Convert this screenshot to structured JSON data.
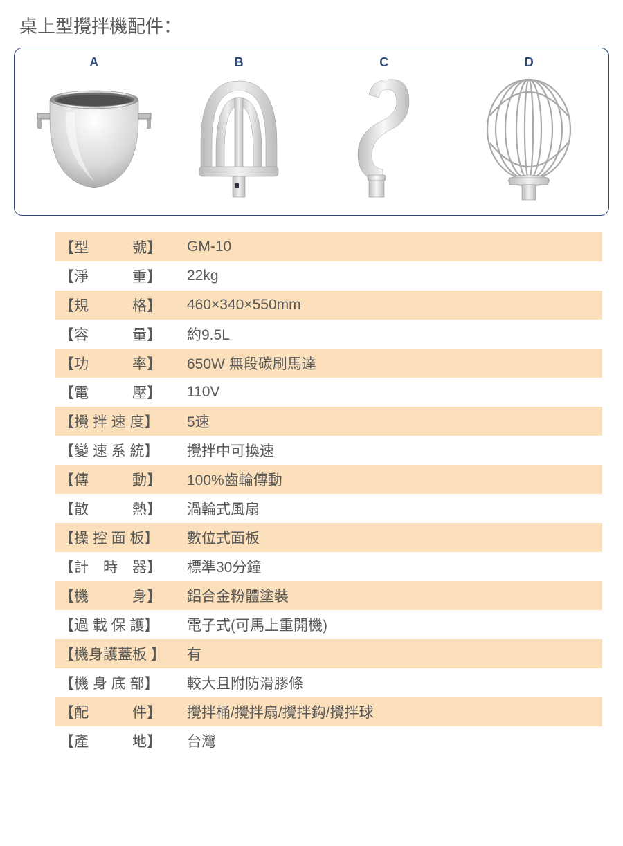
{
  "title": "桌上型攪拌機配件：",
  "accessories": {
    "labels": [
      "A",
      "B",
      "C",
      "D"
    ],
    "names": [
      "bowl",
      "flat-beater",
      "dough-hook",
      "wire-whip"
    ]
  },
  "colors": {
    "border": "#2e4a7a",
    "labelText": "#2e4a7a",
    "bodyText": "#595959",
    "stripe": "#fbe0bb",
    "background": "#ffffff"
  },
  "specs": [
    {
      "key": "【型　　　號】",
      "value": "GM-10"
    },
    {
      "key": "【淨　　　重】",
      "value": "22kg"
    },
    {
      "key": "【規　　　格】",
      "value": "460×340×550mm"
    },
    {
      "key": "【容　　　量】",
      "value": "約9.5L"
    },
    {
      "key": "【功　　　率】",
      "value": "650W 無段碳刷馬達"
    },
    {
      "key": "【電　　　壓】",
      "value": "110V"
    },
    {
      "key": "【攪 拌 速 度】",
      "value": "5速"
    },
    {
      "key": "【變 速 系 統】",
      "value": "攪拌中可換速"
    },
    {
      "key": "【傳　　　動】",
      "value": "100%齒輪傳動"
    },
    {
      "key": "【散　　　熱】",
      "value": "渦輪式風扇"
    },
    {
      "key": "【操 控 面 板】",
      "value": "數位式面板"
    },
    {
      "key": "【計　時　器】",
      "value": "標準30分鐘"
    },
    {
      "key": "【機　　　身】",
      "value": "鋁合金粉體塗裝"
    },
    {
      "key": "【過 載 保 護】",
      "value": "電子式(可馬上重開機)"
    },
    {
      "key": "【機身護蓋板 】",
      "value": "有"
    },
    {
      "key": "【機 身 底 部】",
      "value": "較大且附防滑膠條"
    },
    {
      "key": "【配　　　件】",
      "value": "攪拌桶/攪拌扇/攪拌鈎/攪拌球"
    },
    {
      "key": "【產　　　地】",
      "value": "台灣"
    }
  ]
}
